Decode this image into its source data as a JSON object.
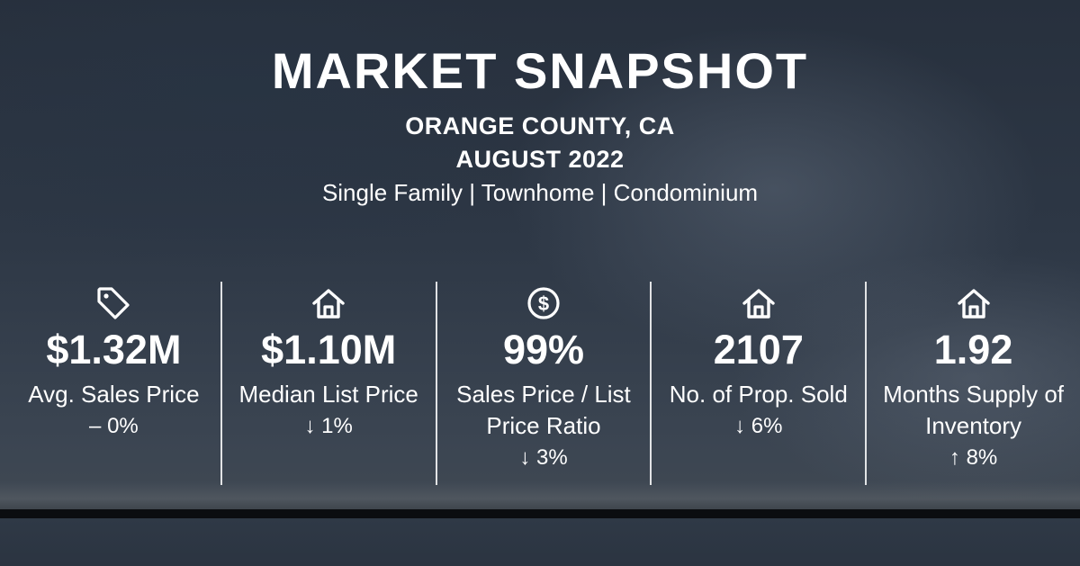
{
  "header": {
    "title": "MARKET SNAPSHOT",
    "location": "ORANGE COUNTY, CA",
    "period": "AUGUST 2022",
    "property_types": "Single Family | Townhome | Condominium"
  },
  "stats": [
    {
      "icon": "price-tag-icon",
      "value": "$1.32M",
      "label": "Avg. Sales Price",
      "change": "– 0%"
    },
    {
      "icon": "house-icon",
      "value": "$1.10M",
      "label": "Median List Price",
      "change": "↓ 1%"
    },
    {
      "icon": "dollar-coin-icon",
      "value": "99%",
      "label": "Sales Price / List Price Ratio",
      "change": "↓ 3%"
    },
    {
      "icon": "house-icon",
      "value": "2107",
      "label": "No. of Prop. Sold",
      "change": "↓ 6%"
    },
    {
      "icon": "house-icon",
      "value": "1.92",
      "label": "Months Supply of Inventory",
      "change": "↑ 8%"
    }
  ],
  "colors": {
    "text": "#ffffff",
    "background": "#2a3340",
    "divider": "#ffffff",
    "bottom_bar": "#0b0d10"
  }
}
